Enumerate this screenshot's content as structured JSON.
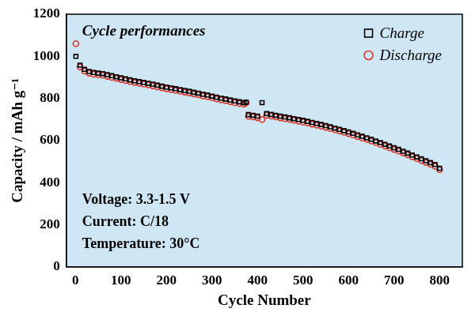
{
  "chart_data": {
    "type": "scatter",
    "title": "Cycle performances",
    "x_label": "Cycle Number",
    "y_label": "Capacity / mAh g⁻¹",
    "annotations": [
      "Voltage: 3.3-1.5 V",
      "Current: C/18",
      "Temperature: 30°C"
    ],
    "x": [
      1,
      10,
      20,
      30,
      40,
      50,
      60,
      70,
      80,
      90,
      100,
      110,
      120,
      130,
      140,
      150,
      160,
      170,
      180,
      190,
      200,
      210,
      220,
      230,
      240,
      250,
      260,
      270,
      280,
      290,
      300,
      310,
      320,
      330,
      340,
      350,
      360,
      370,
      375,
      380,
      390,
      400,
      410,
      420,
      430,
      440,
      450,
      460,
      470,
      480,
      490,
      500,
      510,
      520,
      530,
      540,
      550,
      560,
      570,
      580,
      590,
      600,
      610,
      620,
      630,
      640,
      650,
      660,
      670,
      680,
      690,
      700,
      710,
      720,
      730,
      740,
      750,
      760,
      770,
      780,
      790,
      800
    ],
    "series": [
      {
        "name": "Charge",
        "color": "#000000",
        "marker": "square",
        "values": [
          1000,
          958,
          938,
          928,
          923,
          920,
          918,
          913,
          908,
          903,
          898,
          893,
          888,
          884,
          880,
          876,
          872,
          868,
          863,
          858,
          854,
          850,
          846,
          842,
          838,
          834,
          829,
          825,
          820,
          816,
          811,
          806,
          801,
          797,
          793,
          788,
          784,
          780,
          782,
          723,
          720,
          716,
          780,
          728,
          724,
          720,
          716,
          712,
          708,
          704,
          700,
          696,
          691,
          686,
          681,
          676,
          671,
          665,
          659,
          653,
          647,
          641,
          634,
          627,
          620,
          613,
          606,
          598,
          590,
          582,
          574,
          566,
          558,
          549,
          540,
          531,
          522,
          513,
          504,
          495,
          486,
          468
        ]
      },
      {
        "name": "Discharge",
        "color": "#d9372b",
        "marker": "circle",
        "values": [
          1060,
          950,
          930,
          920,
          915,
          912,
          910,
          905,
          900,
          895,
          890,
          885,
          880,
          876,
          872,
          868,
          864,
          860,
          855,
          850,
          846,
          842,
          838,
          834,
          830,
          826,
          821,
          817,
          812,
          808,
          803,
          798,
          793,
          789,
          785,
          780,
          776,
          772,
          780,
          715,
          712,
          708,
          700,
          720,
          716,
          712,
          708,
          704,
          700,
          696,
          692,
          688,
          683,
          678,
          673,
          668,
          663,
          657,
          651,
          645,
          639,
          633,
          626,
          619,
          612,
          605,
          598,
          590,
          582,
          574,
          566,
          558,
          550,
          541,
          532,
          523,
          514,
          505,
          496,
          487,
          478,
          462
        ]
      }
    ],
    "xlim": [
      -20,
      850
    ],
    "xticks": [
      0,
      100,
      200,
      300,
      400,
      500,
      600,
      700,
      800
    ],
    "ylim": [
      0,
      1200
    ],
    "yticks": [
      0,
      200,
      400,
      600,
      800,
      1000,
      1200
    ],
    "grid": false,
    "legend": "upper right"
  }
}
